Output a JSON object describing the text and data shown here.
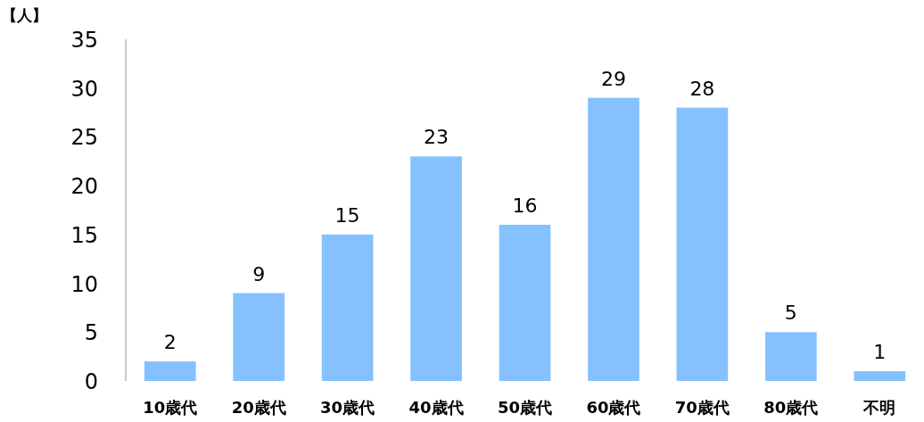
{
  "chart_data": {
    "type": "bar",
    "ylabel": "【人】",
    "categories": [
      "10歳代",
      "20歳代",
      "30歳代",
      "40歳代",
      "50歳代",
      "60歳代",
      "70歳代",
      "80歳代",
      "不明"
    ],
    "values": [
      2,
      9,
      15,
      23,
      16,
      29,
      28,
      5,
      1
    ],
    "color": "#85c1ff",
    "ylim": [
      0,
      35
    ],
    "yticks": [
      0,
      5,
      10,
      15,
      20,
      25,
      30,
      35
    ],
    "data_labels": true
  }
}
